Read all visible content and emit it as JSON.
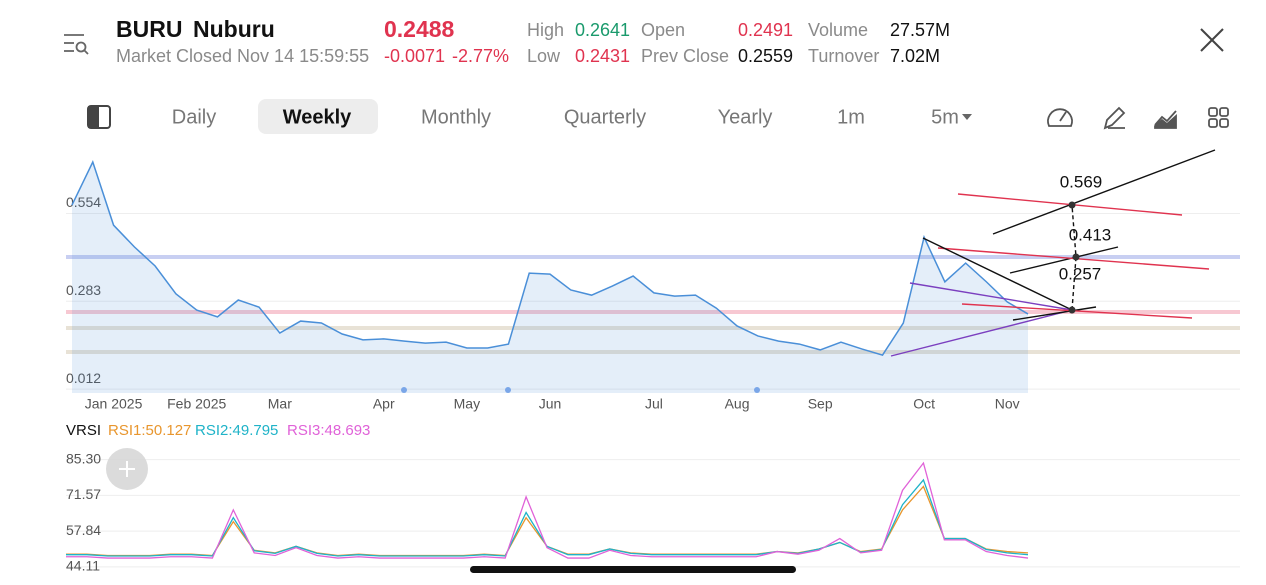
{
  "header": {
    "symbol": "BURU",
    "name": "Nuburu",
    "price": "0.2488",
    "status": "Market Closed Nov 14 15:59:55",
    "change": "-0.0071",
    "change_pct": "-2.77%",
    "stats": [
      {
        "label": "High",
        "value": "0.2641"
      },
      {
        "label": "Open",
        "value": "0.2491"
      },
      {
        "label": "Volume",
        "value": "27.57M"
      },
      {
        "label": "Low",
        "value": "0.2431"
      },
      {
        "label": "Prev Close",
        "value": "0.2559"
      },
      {
        "label": "Turnover",
        "value": "7.02M"
      }
    ]
  },
  "tabs": [
    "Daily",
    "Weekly",
    "Monthly",
    "Quarterly",
    "Yearly",
    "1m",
    "5m"
  ],
  "chart_data": [
    {
      "type": "area",
      "color": "#4a8fd8",
      "categories": [
        null,
        null,
        "Jan 2025",
        null,
        null,
        null,
        "Feb 2025",
        null,
        null,
        null,
        "Mar",
        null,
        null,
        null,
        null,
        "Apr",
        null,
        null,
        null,
        "May",
        null,
        null,
        null,
        "Jun",
        null,
        null,
        null,
        null,
        "Jul",
        null,
        null,
        null,
        "Aug",
        null,
        null,
        null,
        "Sep",
        null,
        null,
        null,
        null,
        "Oct",
        null,
        null,
        null,
        "Nov",
        null
      ],
      "values": [
        0.58,
        0.713,
        0.518,
        0.451,
        0.392,
        0.306,
        0.256,
        0.235,
        0.287,
        0.265,
        0.185,
        0.222,
        0.216,
        0.182,
        0.164,
        0.167,
        0.16,
        0.154,
        0.157,
        0.139,
        0.139,
        0.151,
        0.37,
        0.367,
        0.318,
        0.302,
        0.33,
        0.361,
        0.309,
        0.299,
        0.302,
        0.262,
        0.207,
        0.176,
        0.16,
        0.151,
        0.133,
        0.157,
        0.136,
        0.117,
        0.216,
        0.481,
        0.343,
        0.401,
        0.343,
        0.281,
        0.244
      ],
      "ylim": [
        0,
        0.75
      ],
      "yticks": [
        0.012,
        0.283,
        0.554
      ],
      "grid": true,
      "annotations": [
        0.569,
        0.413,
        0.257
      ]
    },
    {
      "type": "line",
      "title": "VRSI",
      "series": [
        {
          "name": "RSI1:50.127",
          "color": "#e8962e",
          "values": [
            49,
            49,
            48.5,
            48.5,
            48.5,
            49,
            49,
            48.5,
            61.5,
            50.5,
            49.5,
            52,
            49.5,
            48.5,
            49,
            48.5,
            48.5,
            48.5,
            48.5,
            48.5,
            49,
            48.5,
            63,
            52,
            49,
            49,
            51,
            49.5,
            49,
            49,
            49,
            49,
            49,
            49,
            50,
            49.5,
            51,
            53.5,
            50,
            51,
            66,
            75,
            55,
            55,
            51,
            50,
            49.5
          ]
        },
        {
          "name": "RSI2:49.795",
          "color": "#1fb3c8",
          "values": [
            48.8,
            48.8,
            48.3,
            48.3,
            48.3,
            48.8,
            48.8,
            48.3,
            63,
            50.3,
            49.3,
            52,
            49.3,
            48.3,
            48.8,
            48.3,
            48.3,
            48.3,
            48.3,
            48.3,
            48.8,
            48.3,
            65,
            52,
            48.8,
            48.8,
            51,
            49.3,
            48.8,
            48.8,
            48.8,
            48.8,
            48.8,
            48.8,
            50,
            49.3,
            51,
            53.5,
            49.8,
            50.8,
            68,
            77.5,
            55,
            55,
            50.8,
            49.5,
            48.8
          ]
        },
        {
          "name": "RSI3:48.693",
          "color": "#e062d8",
          "values": [
            48,
            48,
            47.5,
            47.5,
            47.5,
            48,
            48,
            47.5,
            66,
            49.5,
            48.5,
            51.5,
            48.5,
            47.5,
            48,
            47.5,
            47.5,
            47.5,
            47.5,
            47.5,
            48,
            47.5,
            71,
            51.5,
            47.5,
            47.5,
            50.5,
            48.5,
            48,
            48,
            48,
            48,
            48,
            48,
            50,
            49,
            50.5,
            55,
            49.5,
            50.5,
            73.5,
            84,
            54.5,
            54.5,
            50,
            48.5,
            47.5
          ]
        }
      ],
      "ylim": [
        41,
        89
      ],
      "yticks": [
        {
          "value": 44.11,
          "label": "44.11"
        },
        {
          "value": 57.84,
          "label": "57.84"
        },
        {
          "value": 71.57,
          "label": "71.57"
        },
        {
          "value": 85.3,
          "label": "85.30"
        }
      ],
      "grid": true
    }
  ]
}
